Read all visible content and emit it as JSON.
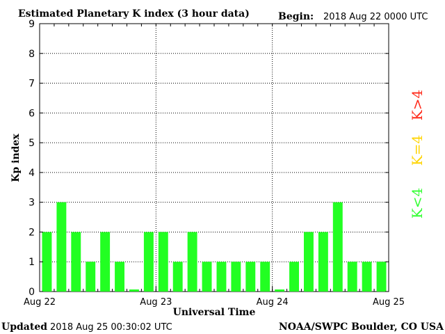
{
  "header": {
    "title": "Estimated Planetary K index (3 hour data)",
    "begin_label": "Begin:",
    "begin_value": "2018 Aug 22 0000 UTC"
  },
  "footer": {
    "updated_label": "Updated",
    "updated_value": "2018 Aug 25 00:30:02 UTC",
    "credit": "NOAA/SWPC Boulder, CO USA"
  },
  "legend": {
    "high": {
      "text": "K>4",
      "color": "#ff2a1a"
    },
    "mid": {
      "text": "K=4",
      "color": "#ffd400"
    },
    "low": {
      "text": "K<4",
      "color": "#33ff33"
    }
  },
  "chart_data": {
    "type": "bar",
    "title": "Estimated Planetary K index (3 hour data)",
    "xlabel": "Universal Time",
    "ylabel": "Kp index",
    "ylim": [
      0,
      9
    ],
    "yticks": [
      "0",
      "1",
      "2",
      "3",
      "4",
      "5",
      "6",
      "7",
      "8",
      "9"
    ],
    "xticks": [
      "Aug 22",
      "Aug 23",
      "Aug 24",
      "Aug 25"
    ],
    "grid": true,
    "bar_color": "#22ff22",
    "series": [
      {
        "values": [
          2,
          3,
          2,
          1,
          2,
          1,
          0.07,
          2,
          2,
          1,
          2,
          1,
          1,
          1,
          1,
          1,
          0.07,
          1,
          2,
          2,
          3,
          1,
          1,
          1
        ]
      }
    ]
  }
}
